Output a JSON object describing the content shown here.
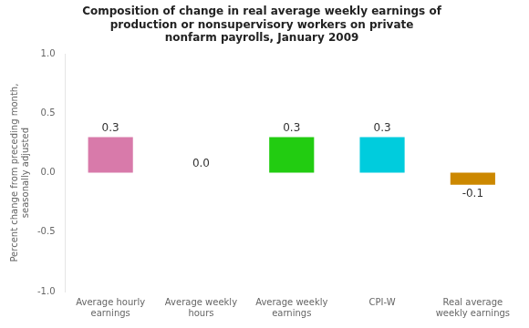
{
  "chart_data": {
    "type": "bar",
    "title": "Composition of change in real average weekly earnings of\nproduction or nonsupervisory workers on private\nnonfarm payrolls, January 2009",
    "y_label": "Percent change from preceding month,\nseasonally adjusted",
    "categories": [
      "Average hourly\nearnings",
      "Average weekly\nhours",
      "Average weekly\nearnings",
      "CPI-W",
      "Real average\nweekly earnings"
    ],
    "values": [
      0.3,
      0.0,
      0.3,
      0.3,
      -0.1
    ],
    "value_labels": [
      "0.3",
      "0.0",
      "0.3",
      "0.3",
      "-0.1"
    ],
    "colors": [
      "#d87aaa",
      "#33bb33",
      "#22cc11",
      "#00ccdd",
      "#cc8800"
    ],
    "ylim": [
      -1.0,
      1.0
    ],
    "yticks": [
      {
        "value": -1.0,
        "label": "-1.0"
      },
      {
        "value": -0.5,
        "label": "-0.5"
      },
      {
        "value": 0.0,
        "label": "0.0"
      },
      {
        "value": 0.5,
        "label": "0.5"
      },
      {
        "value": 1.0,
        "label": "1.0"
      }
    ],
    "grid": false,
    "data_labels": true
  }
}
